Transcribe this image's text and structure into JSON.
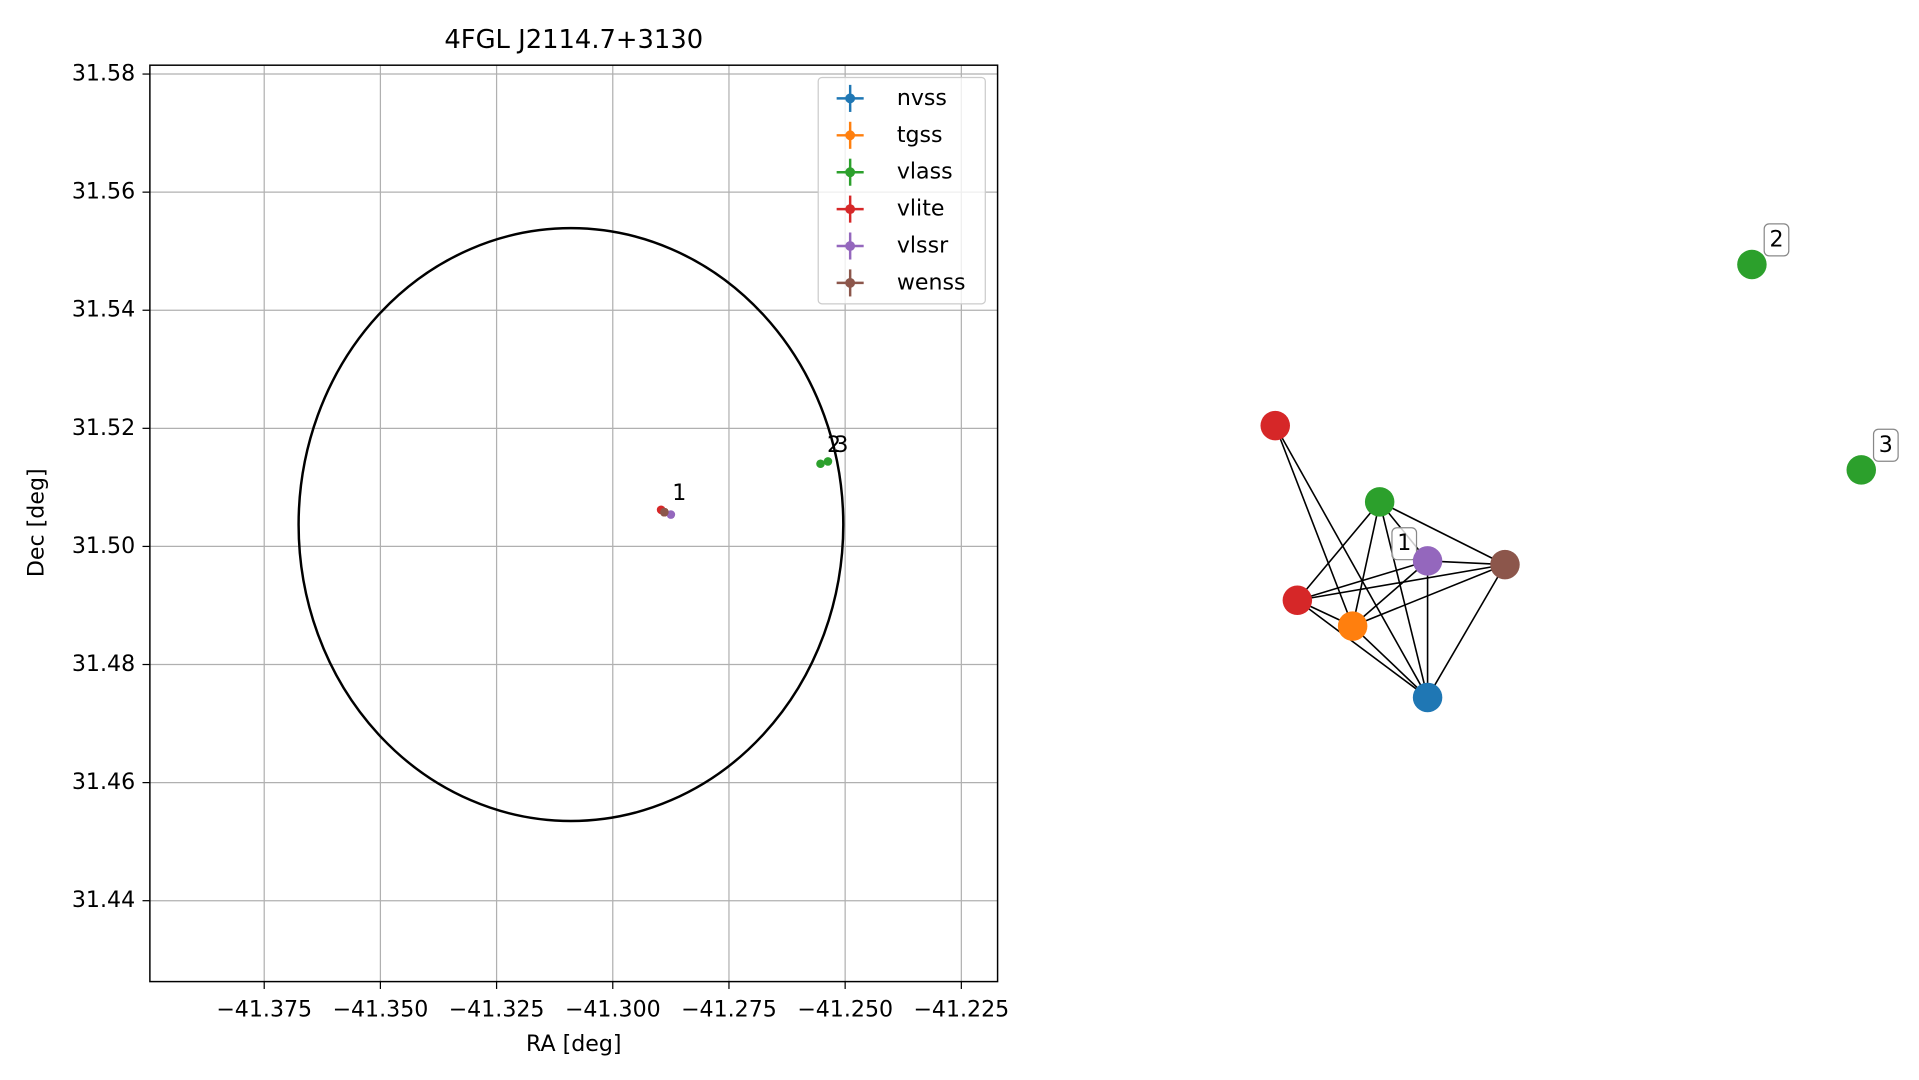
{
  "chart_data": {
    "type": "scatter",
    "title": "4FGL J2114.7+3130",
    "xlabel": "RA [deg]",
    "ylabel": "Dec [deg]",
    "xlim": [
      -41.3996,
      -41.2172
    ],
    "ylim": [
      31.4263,
      31.5815
    ],
    "xticks": [
      {
        "value": -41.375,
        "label": "−41.375"
      },
      {
        "value": -41.35,
        "label": "−41.350"
      },
      {
        "value": -41.325,
        "label": "−41.325"
      },
      {
        "value": -41.3,
        "label": "−41.300"
      },
      {
        "value": -41.275,
        "label": "−41.275"
      },
      {
        "value": -41.25,
        "label": "−41.250"
      },
      {
        "value": -41.225,
        "label": "−41.225"
      }
    ],
    "yticks": [
      {
        "value": 31.44,
        "label": "31.44"
      },
      {
        "value": 31.46,
        "label": "31.46"
      },
      {
        "value": 31.48,
        "label": "31.48"
      },
      {
        "value": 31.5,
        "label": "31.50"
      },
      {
        "value": 31.52,
        "label": "31.52"
      },
      {
        "value": 31.54,
        "label": "31.54"
      },
      {
        "value": 31.56,
        "label": "31.56"
      },
      {
        "value": 31.58,
        "label": "31.58"
      }
    ],
    "grid": true,
    "legend": "upper right",
    "series": [
      {
        "name": "nvss",
        "color": "#1f77b4",
        "x": [
          -41.2889
        ],
        "y": [
          31.5058
        ]
      },
      {
        "name": "tgss",
        "color": "#ff7f0e",
        "x": [
          -41.2889
        ],
        "y": [
          31.5058
        ]
      },
      {
        "name": "vlass",
        "color": "#2ca02c",
        "x": [
          -41.2889,
          -41.2553,
          -41.2537
        ],
        "y": [
          31.5058,
          31.514,
          31.5144
        ]
      },
      {
        "name": "vlite",
        "color": "#d62728",
        "x": [
          -41.2896,
          -41.2889
        ],
        "y": [
          31.5062,
          31.5058
        ]
      },
      {
        "name": "vlssr",
        "color": "#9467bd",
        "x": [
          -41.2875
        ],
        "y": [
          31.5054
        ]
      },
      {
        "name": "wenss",
        "color": "#8c564b",
        "x": [
          -41.2889
        ],
        "y": [
          31.5058
        ]
      }
    ],
    "ellipse": {
      "x": -41.309,
      "y": 31.5037,
      "radius_x": 0.0586,
      "radius_y": 0.0502,
      "color": "#000000"
    },
    "annotations": [
      {
        "text": "1",
        "x": -41.2857,
        "y": 31.509
      },
      {
        "text": "2",
        "x": -41.2524,
        "y": 31.5171
      },
      {
        "text": "3",
        "x": -41.2508,
        "y": 31.5171
      }
    ],
    "graph": {
      "nodes": [
        {
          "color": "#d62728"
        },
        {
          "color": "#2ca02c"
        },
        {
          "color": "#9467bd",
          "label": "1"
        },
        {
          "color": "#8c564b"
        },
        {
          "color": "#d62728"
        },
        {
          "color": "#ff7f0e"
        },
        {
          "color": "#1f77b4"
        },
        {
          "color": "#2ca02c",
          "label": "2"
        },
        {
          "color": "#2ca02c",
          "label": "3"
        }
      ],
      "edges": [
        [
          0,
          5
        ],
        [
          0,
          6
        ],
        [
          1,
          4
        ],
        [
          1,
          5
        ],
        [
          1,
          6
        ],
        [
          1,
          3
        ],
        [
          1,
          2
        ],
        [
          2,
          3
        ],
        [
          2,
          4
        ],
        [
          2,
          5
        ],
        [
          2,
          6
        ],
        [
          3,
          4
        ],
        [
          3,
          5
        ],
        [
          3,
          6
        ],
        [
          4,
          5
        ],
        [
          4,
          6
        ],
        [
          5,
          6
        ]
      ]
    }
  }
}
